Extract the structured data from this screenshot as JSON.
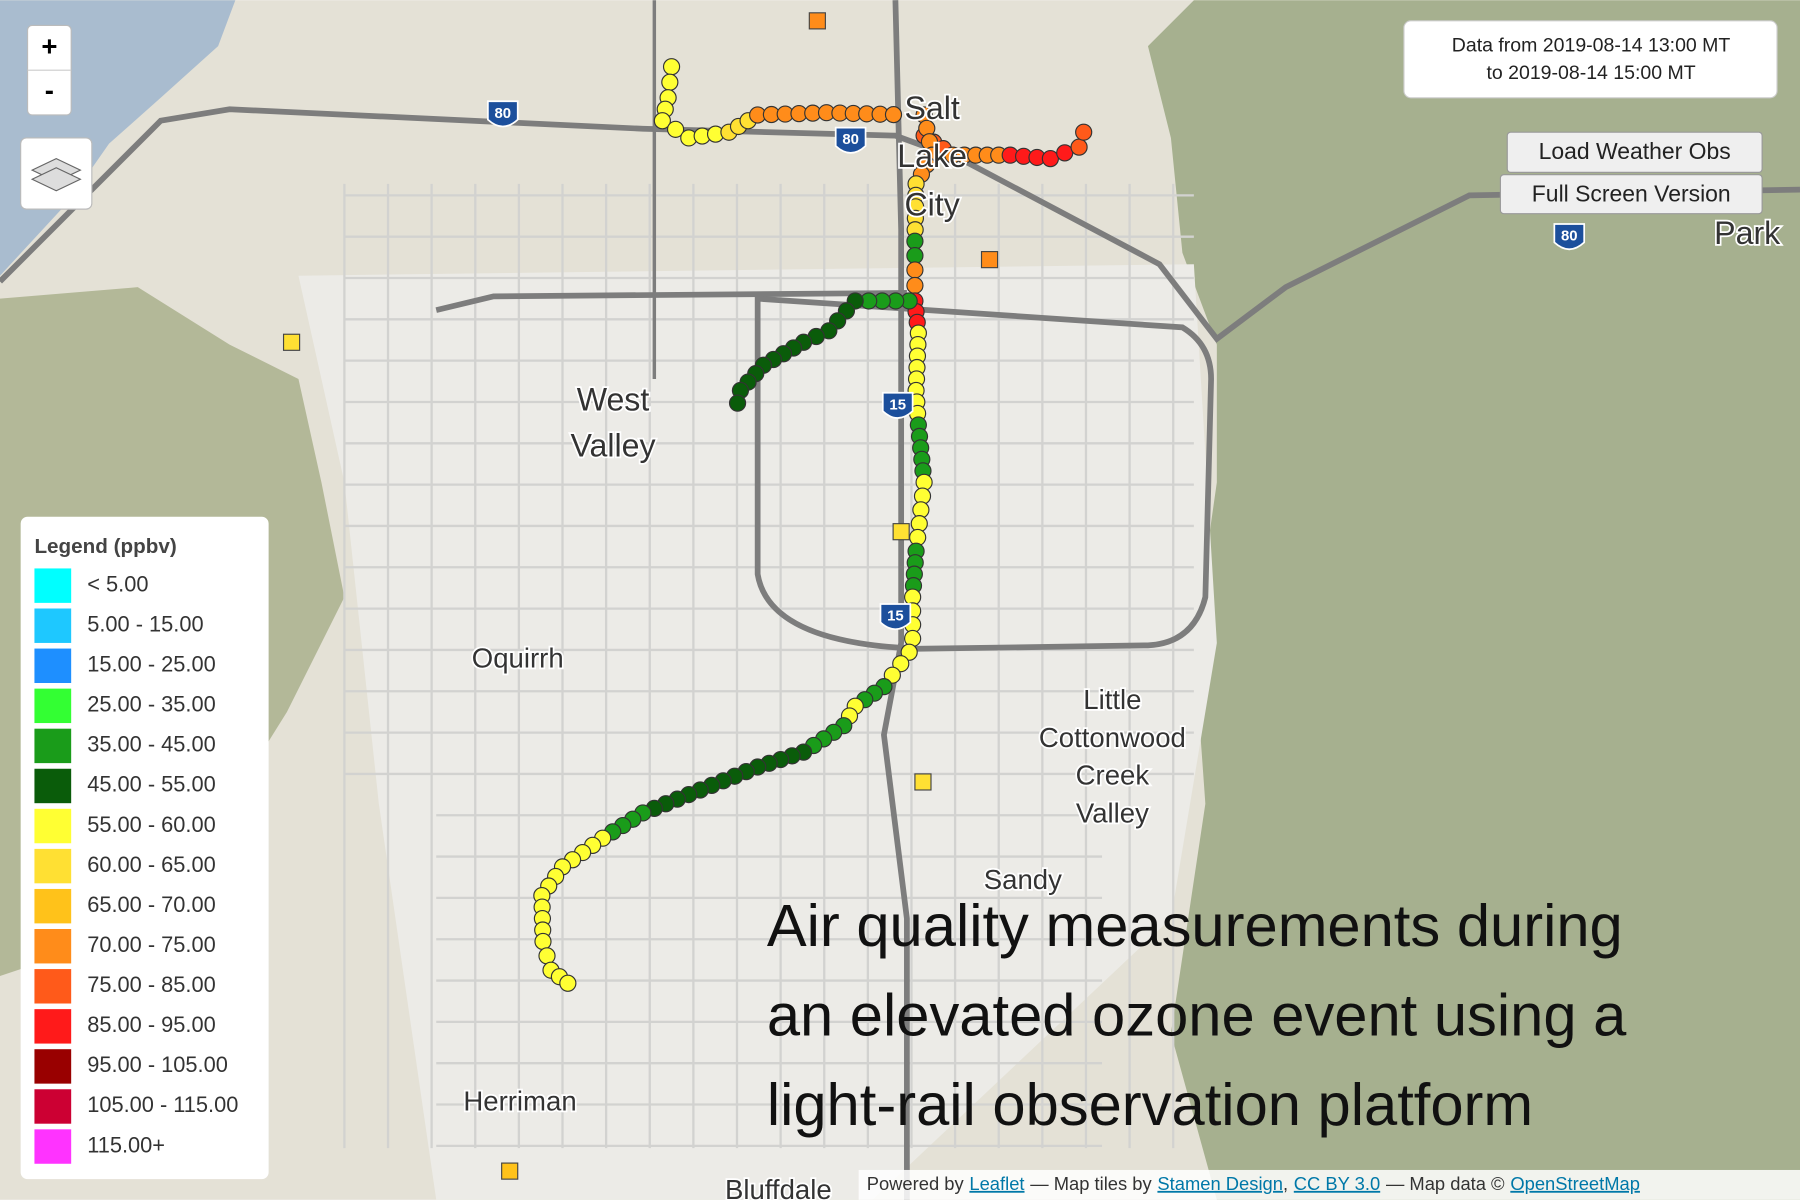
{
  "map": {
    "places": [
      {
        "lines": [
          "Salt",
          "Lake",
          "City"
        ]
      },
      {
        "lines": [
          "Park"
        ]
      },
      {
        "lines": [
          "West",
          "Valley"
        ]
      },
      {
        "lines": [
          "Oquirrh"
        ]
      },
      {
        "lines": [
          "Little",
          "Cottonwood",
          "Creek",
          "Valley"
        ]
      },
      {
        "lines": [
          "Sandy"
        ]
      },
      {
        "lines": [
          "Herriman"
        ]
      },
      {
        "lines": [
          "Bluffdale"
        ]
      }
    ],
    "shields": [
      "80",
      "80",
      "80",
      "15",
      "15"
    ]
  },
  "controls": {
    "zoom_in": "+",
    "zoom_out": "-"
  },
  "info": {
    "line1": "Data from 2019-08-14 13:00 MT",
    "line2": "to 2019-08-14 15:00 MT"
  },
  "buttons": [
    "Load Weather Obs",
    "Full Screen Version"
  ],
  "legend": {
    "title": "Legend (ppbv)",
    "items": [
      {
        "label": "< 5.00",
        "color": "#00ffff"
      },
      {
        "label": "5.00 - 15.00",
        "color": "#1ec8ff"
      },
      {
        "label": "15.00 - 25.00",
        "color": "#1e8fff"
      },
      {
        "label": "25.00 - 35.00",
        "color": "#33ff33"
      },
      {
        "label": "35.00 - 45.00",
        "color": "#1a9c1a"
      },
      {
        "label": "45.00 - 55.00",
        "color": "#0a5c0a"
      },
      {
        "label": "55.00 - 60.00",
        "color": "#ffff33"
      },
      {
        "label": "60.00 - 65.00",
        "color": "#ffe033"
      },
      {
        "label": "65.00 - 70.00",
        "color": "#ffc21a"
      },
      {
        "label": "70.00 - 75.00",
        "color": "#ff8c1a"
      },
      {
        "label": "75.00 - 85.00",
        "color": "#ff5a1a"
      },
      {
        "label": "85.00 - 95.00",
        "color": "#ff1a1a"
      },
      {
        "label": "95.00 - 105.00",
        "color": "#990000"
      },
      {
        "label": "105.00 - 115.00",
        "color": "#cc0033"
      },
      {
        "label": "115.00+",
        "color": "#ff33ff"
      }
    ]
  },
  "caption": [
    "Air quality measurements during",
    "an elevated ozone event using a",
    "light-rail observation platform"
  ],
  "attribution": [
    "Powered by",
    "Leaflet",
    "— Map tiles by",
    "Stamen Design",
    ",",
    "CC BY 3.0",
    "— Map data ©",
    "OpenStreetMap"
  ]
}
